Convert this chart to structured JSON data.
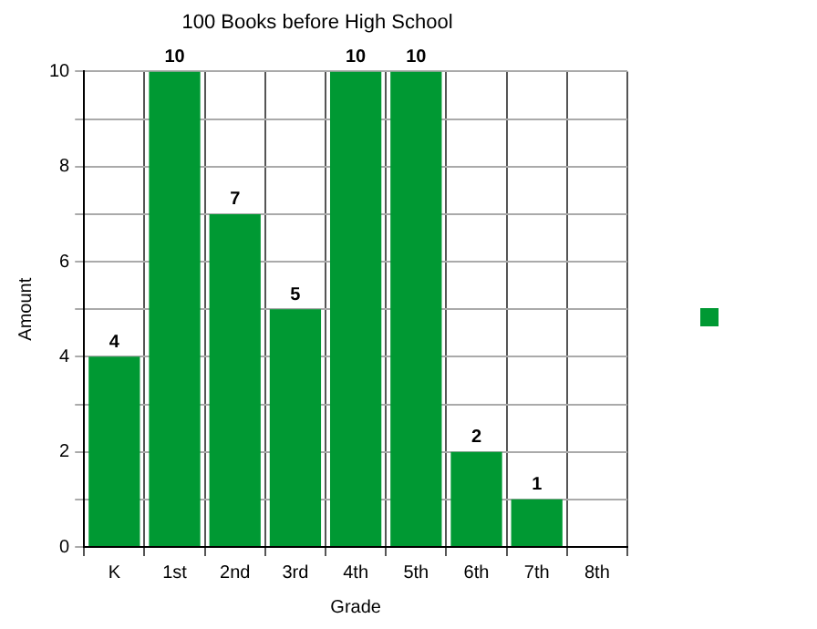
{
  "chart_data": {
    "type": "bar",
    "title": "100 Books before High School",
    "xlabel": "Grade",
    "ylabel": "Amount",
    "categories": [
      "K",
      "1st",
      "2nd",
      "3rd",
      "4th",
      "5th",
      "6th",
      "7th",
      "8th"
    ],
    "series": [
      {
        "color": "#009933",
        "values": [
          4,
          10,
          7,
          5,
          10,
          10,
          2,
          1,
          0
        ],
        "value_labels": [
          "4",
          "10",
          "7",
          "5",
          "10",
          "10",
          "2",
          "1",
          null
        ]
      }
    ],
    "ylim": [
      0,
      10
    ],
    "yticks": [
      0,
      {
        "value": 1,
        "label": null
      },
      2,
      {
        "value": 3,
        "label": null
      },
      4,
      {
        "value": 5,
        "label": null
      },
      6,
      {
        "value": 7,
        "label": null
      },
      8,
      {
        "value": 9,
        "label": null
      },
      10
    ],
    "grid": true
  }
}
